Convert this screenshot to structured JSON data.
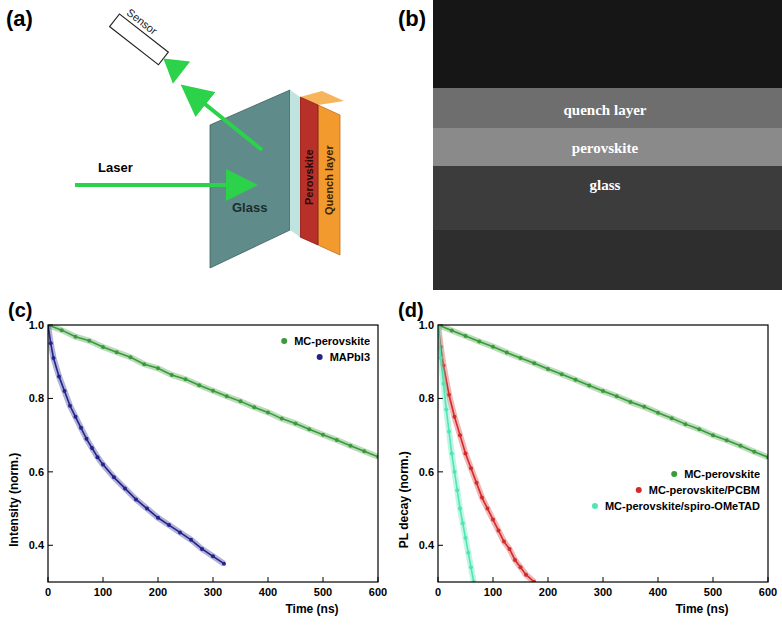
{
  "chart_data": [
    {
      "type": "scatter",
      "title": "(c)",
      "x_label": "Time (ns)",
      "y_label": "Intensity (norm.)",
      "xlim": [
        0,
        600
      ],
      "ylim": [
        0.3,
        1.0
      ],
      "xticks": [
        0,
        100,
        200,
        300,
        400,
        500,
        600
      ],
      "yticks": [
        0.4,
        0.6,
        0.8,
        {
          "value": 1,
          "label": "1.0"
        }
      ],
      "legend": "upper right",
      "series": [
        {
          "name": "MC-perovskite",
          "color": "#3a9a3a",
          "marker": "circle",
          "line_style": "solid",
          "x": [
            0,
            25,
            50,
            75,
            100,
            125,
            150,
            175,
            200,
            225,
            250,
            275,
            300,
            325,
            350,
            375,
            400,
            425,
            450,
            475,
            500,
            525,
            550,
            575,
            600
          ],
          "values": [
            1.0,
            0.986,
            0.968,
            0.957,
            0.94,
            0.926,
            0.912,
            0.893,
            0.882,
            0.864,
            0.852,
            0.836,
            0.821,
            0.806,
            0.792,
            0.776,
            0.762,
            0.745,
            0.732,
            0.716,
            0.701,
            0.687,
            0.671,
            0.656,
            0.641
          ]
        },
        {
          "name": "MAPbI3",
          "color": "#23238c",
          "marker": "circle",
          "line_style": "solid",
          "x": [
            0,
            5,
            10,
            20,
            30,
            40,
            50,
            60,
            70,
            80,
            90,
            100,
            120,
            140,
            160,
            180,
            200,
            220,
            240,
            260,
            280,
            300,
            320
          ],
          "values": [
            1.0,
            0.95,
            0.91,
            0.86,
            0.82,
            0.78,
            0.75,
            0.72,
            0.69,
            0.665,
            0.64,
            0.62,
            0.585,
            0.555,
            0.525,
            0.5,
            0.475,
            0.455,
            0.435,
            0.415,
            0.39,
            0.37,
            0.35
          ]
        }
      ]
    },
    {
      "type": "scatter",
      "title": "(d)",
      "x_label": "Time (ns)",
      "y_label": "PL decay (norm.)",
      "xlim": [
        0,
        600
      ],
      "ylim": [
        0.3,
        1.0
      ],
      "xticks": [
        0,
        100,
        200,
        300,
        400,
        500,
        600
      ],
      "yticks": [
        0.4,
        0.6,
        0.8,
        {
          "value": 1,
          "label": "1.0"
        }
      ],
      "legend": "right",
      "series": [
        {
          "name": "MC-perovskite",
          "color": "#3a9a3a",
          "marker": "circle",
          "line_style": "solid",
          "x": [
            0,
            25,
            50,
            75,
            100,
            125,
            150,
            175,
            200,
            225,
            250,
            275,
            300,
            325,
            350,
            375,
            400,
            425,
            450,
            475,
            500,
            525,
            550,
            575,
            600
          ],
          "values": [
            1.0,
            0.985,
            0.97,
            0.955,
            0.941,
            0.925,
            0.91,
            0.896,
            0.88,
            0.866,
            0.851,
            0.835,
            0.82,
            0.806,
            0.79,
            0.777,
            0.761,
            0.746,
            0.73,
            0.716,
            0.7,
            0.686,
            0.671,
            0.655,
            0.64
          ]
        },
        {
          "name": "MC-perovskite/PCBM",
          "color": "#d42a2a",
          "marker": "circle",
          "line_style": "solid",
          "x": [
            0,
            5,
            10,
            20,
            30,
            40,
            50,
            60,
            70,
            80,
            90,
            100,
            110,
            120,
            130,
            140,
            150,
            160,
            175
          ],
          "values": [
            1.0,
            0.94,
            0.89,
            0.81,
            0.75,
            0.7,
            0.65,
            0.61,
            0.57,
            0.53,
            0.5,
            0.47,
            0.44,
            0.41,
            0.39,
            0.36,
            0.34,
            0.32,
            0.3
          ]
        },
        {
          "name": "MC-perovskite/spiro-OMeTAD",
          "color": "#4ee6b4",
          "marker": "circle",
          "line_style": "solid",
          "x": [
            0,
            5,
            10,
            15,
            20,
            25,
            30,
            35,
            40,
            45,
            50,
            55,
            60,
            65
          ],
          "values": [
            1.0,
            0.91,
            0.84,
            0.77,
            0.71,
            0.65,
            0.6,
            0.55,
            0.5,
            0.46,
            0.42,
            0.38,
            0.34,
            0.3
          ]
        }
      ]
    }
  ],
  "diagram": {
    "title": "(a)",
    "sensor": "Sensor",
    "laser": "Laser",
    "glass": "Glass",
    "perovskite": "Perovskite",
    "quench_layer": "Quench layer"
  },
  "image": {
    "title": "(b)",
    "layers": [
      "quench layer",
      "perovskite",
      "glass"
    ]
  }
}
